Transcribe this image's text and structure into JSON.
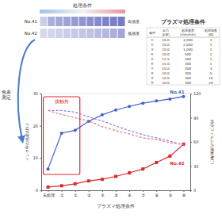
{
  "chart_data": {
    "type": "line",
    "categories": [
      "未処理",
      "①",
      "②",
      "③",
      "④",
      "⑤",
      "⑥",
      "⑦",
      "⑧",
      "⑨",
      "⑩"
    ],
    "series": [
      {
        "name": "No.41",
        "color": "#3f63cc",
        "marker": "circle",
        "line_style": "solid",
        "values": [
          6.6,
          17.7,
          18.6,
          21.4,
          23.4,
          24.9,
          26.0,
          27.0,
          27.7,
          28.3,
          29.1
        ]
      },
      {
        "name": "No.42",
        "color": "#e0282e",
        "marker": "square",
        "line_style": "solid",
        "values": [
          1.0,
          1.4,
          2.0,
          2.9,
          3.4,
          4.3,
          5.4,
          6.6,
          8.6,
          10.6,
          14.3
        ]
      },
      {
        "color": "#8a7fd6",
        "line_style": "dashed",
        "axis": "y2",
        "values": [
          99,
          99,
          97,
          91,
          86,
          80,
          74,
          69,
          65,
          61,
          56
        ]
      },
      {
        "color": "#e8768f",
        "line_style": "dashed",
        "axis": "y2",
        "values": [
          99,
          94,
          90,
          86,
          79,
          74,
          70,
          65,
          63,
          59,
          57
        ]
      }
    ],
    "x_label": "プラズマ処理条件",
    "y_label": "インク中の色差ΔE(-)",
    "y2_label": "純水フィルムの接触角(°)",
    "ylim": [
      0,
      30
    ],
    "yticks": [
      0,
      10,
      20,
      30
    ],
    "y2lim": [
      0,
      120
    ],
    "y2ticks": [
      0,
      30,
      60,
      90,
      120
    ],
    "annotations": [
      {
        "text": "接触角",
        "color": "#e0282e"
      }
    ],
    "grid": false
  },
  "header": {
    "title": "処理条件",
    "rows": [
      {
        "label": "No.41",
        "sensitivity": "高感度",
        "colors": [
          "#c9cde8",
          "#a9aede",
          "#a3a8db",
          "#9da2d8",
          "#969bd5",
          "#9095d2",
          "#8a8fcf",
          "#858acc",
          "#7f84c9",
          "#7a7fc6",
          "#757ac3"
        ]
      },
      {
        "label": "No.42",
        "sensitivity": "低感度",
        "colors": [
          "#d6d9ee",
          "#d2d5ec",
          "#ced1eb",
          "#cacde9",
          "#c6c9e7",
          "#c2c5e5",
          "#bec1e3",
          "#b9bde1",
          "#b3b7de",
          "#abafdb",
          "#a1a6d7"
        ]
      }
    ]
  },
  "side_label": [
    "色差",
    "測定"
  ],
  "table": {
    "title": "プラズマ処理条件",
    "header": [
      [
        "条件"
      ],
      [
        "出力",
        "(kW)"
      ],
      [
        "処理速度",
        "(mm/min)"
      ],
      [
        "処理回数",
        "(回)"
      ]
    ],
    "rows": [
      [
        "①",
        "10.0",
        "3,000",
        "1"
      ],
      [
        "②",
        "10.0",
        "2,000",
        "1"
      ],
      [
        "③",
        "10.0",
        "1,000",
        "1"
      ],
      [
        "④",
        "10.0",
        "500",
        "1"
      ],
      [
        "⑤",
        "12.5",
        "300",
        "1"
      ],
      [
        "⑥",
        "15.0",
        "300",
        "1"
      ],
      [
        "⑦",
        "10.0",
        "300",
        "3"
      ],
      [
        "⑧",
        "10.0",
        "300",
        "5"
      ],
      [
        "⑨",
        "10.0",
        "300",
        "10"
      ],
      [
        "⑩",
        "10.0",
        "300",
        "20"
      ]
    ]
  }
}
